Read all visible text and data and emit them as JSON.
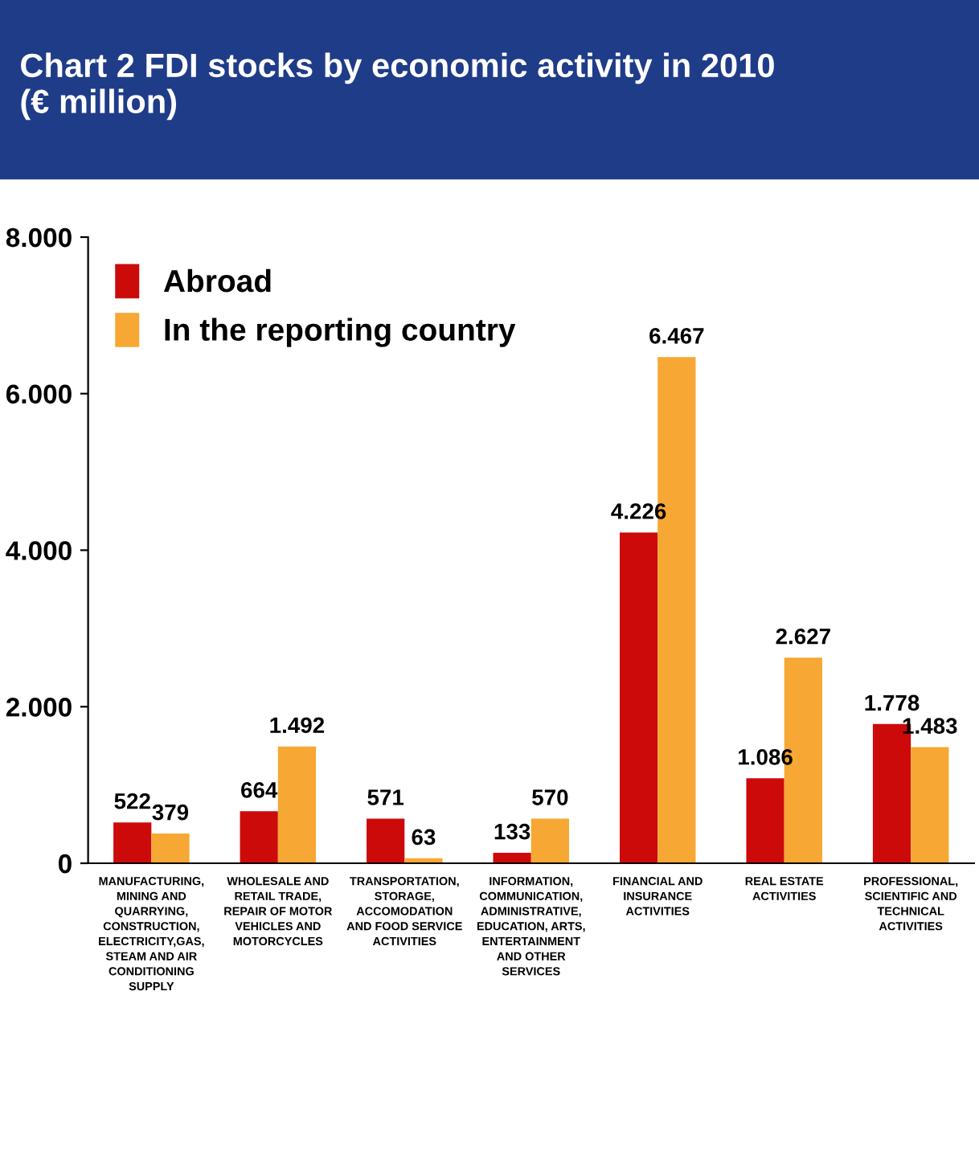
{
  "chart_data": {
    "type": "bar",
    "title": "Chart 2 FDI stocks by economic activity in 2010\n(€ million)",
    "categories": [
      "MANUFACTURING,\nMINING AND\nQUARRYING,\nCONSTRUCTION,\nELECTRICITY,GAS,\nSTEAM AND AIR\nCONDITIONING\nSUPPLY",
      "WHOLESALE AND\nRETAIL TRADE,\nREPAIR OF MOTOR\nVEHICLES AND\nMOTORCYCLES",
      "TRANSPORTATION,\nSTORAGE,\nACCOMODATION\nAND FOOD SERVICE\nACTIVITIES",
      "INFORMATION,\nCOMMUNICATION,\nADMINISTRATIVE,\nEDUCATION, ARTS,\nENTERTAINMENT\nAND OTHER\nSERVICES",
      "FINANCIAL AND\nINSURANCE\nACTIVITIES",
      "REAL ESTATE\nACTIVITIES",
      "PROFESSIONAL,\nSCIENTIFIC AND\nTECHNICAL\nACTIVITIES"
    ],
    "series": [
      {
        "name": "Abroad",
        "color": "#cc0a0a",
        "values": [
          522,
          664,
          571,
          133,
          4226,
          1086,
          1778
        ],
        "value_labels": [
          "522",
          "664",
          "571",
          "133",
          "4.226",
          "1.086",
          "1.778"
        ]
      },
      {
        "name": "In the reporting country",
        "color": "#f7a733",
        "values": [
          379,
          1492,
          63,
          570,
          6467,
          2627,
          1483
        ],
        "value_labels": [
          "379",
          "1.492",
          "63",
          "570",
          "6.467",
          "2.627",
          "1.483"
        ]
      }
    ],
    "ylim": [
      0,
      8000
    ],
    "yticks": [
      {
        "value": 0,
        "label": "0"
      },
      {
        "value": 2000,
        "label": "2.000"
      },
      {
        "value": 4000,
        "label": "4.000"
      },
      {
        "value": 6000,
        "label": "6.000"
      },
      {
        "value": 8000,
        "label": "8.000"
      }
    ],
    "grid": false,
    "legend": "top left"
  }
}
